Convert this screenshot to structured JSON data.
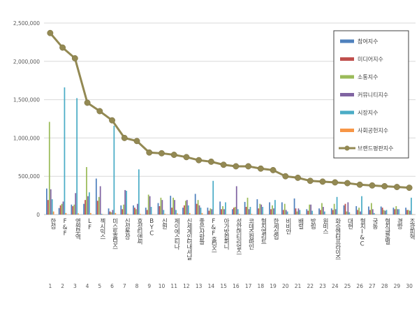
{
  "chart_data": {
    "type": "bar",
    "ylim": [
      0,
      2500000
    ],
    "y_ticks": [
      {
        "value": 0,
        "label": "0"
      },
      {
        "value": 500000,
        "label": "500,000"
      },
      {
        "value": 1000000,
        "label": "1,000,000"
      },
      {
        "value": 1500000,
        "label": "1,500,000"
      },
      {
        "value": 2000000,
        "label": "2,000,000"
      },
      {
        "value": 2500000,
        "label": "2,500,000"
      }
    ],
    "grid": true,
    "legend_position": "top-right",
    "categories": [
      "한섬",
      "F&F",
      "영원무역",
      "LF",
      "젝시믹스",
      "미스토홀딩스",
      "신성통상",
      "효성티앤씨",
      "BYC",
      "신원",
      "제이에스티나",
      "신세계인터내셔날",
      "좋은사람들",
      "F&F홀딩스",
      "아가방컴퍼니",
      "성안머티리얼스",
      "코데즈컴바인",
      "형지엘리트",
      "한세실업",
      "비비안",
      "배럴",
      "방림",
      "원비스",
      "화승엔터프라이즈",
      "대현",
      "형지I&C",
      "국동",
      "형지글로벌",
      "경방",
      "조광피혁"
    ],
    "ranks": [
      "1",
      "2",
      "3",
      "4",
      "5",
      "6",
      "7",
      "8",
      "9",
      "10",
      "11",
      "12",
      "13",
      "14",
      "15",
      "16",
      "17",
      "18",
      "19",
      "20",
      "21",
      "22",
      "23",
      "24",
      "25",
      "26",
      "27",
      "28",
      "29",
      "30"
    ],
    "series": [
      {
        "name": "참여지수",
        "color": "#4f81bd",
        "type": "bar",
        "values": [
          340000,
          85000,
          130000,
          140000,
          470000,
          80000,
          120000,
          120000,
          90000,
          150000,
          245000,
          90000,
          270000,
          90000,
          170000,
          70000,
          165000,
          200000,
          160000,
          160000,
          210000,
          70000,
          80000,
          80000,
          120000,
          110000,
          105000,
          105000,
          90000,
          90000
        ]
      },
      {
        "name": "미디어지수",
        "color": "#c0504d",
        "type": "bar",
        "values": [
          190000,
          120000,
          110000,
          190000,
          180000,
          40000,
          70000,
          90000,
          60000,
          110000,
          90000,
          120000,
          140000,
          50000,
          70000,
          90000,
          100000,
          80000,
          70000,
          60000,
          80000,
          50000,
          60000,
          60000,
          140000,
          60000,
          60000,
          90000,
          70000,
          60000
        ]
      },
      {
        "name": "소통지수",
        "color": "#9bbb59",
        "type": "bar",
        "values": [
          1210000,
          140000,
          130000,
          620000,
          230000,
          30000,
          130000,
          70000,
          260000,
          220000,
          220000,
          180000,
          190000,
          80000,
          110000,
          100000,
          220000,
          140000,
          120000,
          140000,
          40000,
          130000,
          150000,
          140000,
          40000,
          90000,
          150000,
          60000,
          110000,
          60000
        ]
      },
      {
        "name": "커뮤니티지수",
        "color": "#8064a2",
        "type": "bar",
        "values": [
          330000,
          170000,
          280000,
          240000,
          370000,
          60000,
          320000,
          140000,
          240000,
          190000,
          190000,
          190000,
          120000,
          70000,
          70000,
          370000,
          70000,
          130000,
          80000,
          60000,
          80000,
          130000,
          100000,
          70000,
          160000,
          40000,
          70000,
          50000,
          70000,
          50000
        ]
      },
      {
        "name": "시장지수",
        "color": "#4bacc6",
        "type": "bar",
        "values": [
          200000,
          1660000,
          1520000,
          290000,
          10000,
          1160000,
          310000,
          590000,
          100000,
          60000,
          60000,
          120000,
          90000,
          440000,
          160000,
          70000,
          100000,
          100000,
          190000,
          40000,
          60000,
          50000,
          40000,
          230000,
          30000,
          240000,
          20000,
          60000,
          70000,
          220000
        ]
      },
      {
        "name": "사회공헌지수",
        "color": "#f79646",
        "type": "bar",
        "values": [
          40000,
          20000,
          15000,
          20000,
          5000,
          20000,
          10000,
          10000,
          5000,
          10000,
          15000,
          20000,
          20000,
          5000,
          5000,
          10000,
          10000,
          5000,
          5000,
          5000,
          5000,
          5000,
          5000,
          5000,
          5000,
          5000,
          5000,
          5000,
          5000,
          5000
        ]
      },
      {
        "name": "브랜드평판지수",
        "color": "#938953",
        "type": "line",
        "values": [
          2370000,
          2180000,
          2040000,
          1460000,
          1350000,
          1230000,
          1000000,
          960000,
          810000,
          800000,
          780000,
          750000,
          710000,
          690000,
          650000,
          630000,
          630000,
          600000,
          580000,
          500000,
          480000,
          440000,
          430000,
          420000,
          410000,
          390000,
          380000,
          370000,
          360000,
          350000
        ]
      }
    ]
  }
}
